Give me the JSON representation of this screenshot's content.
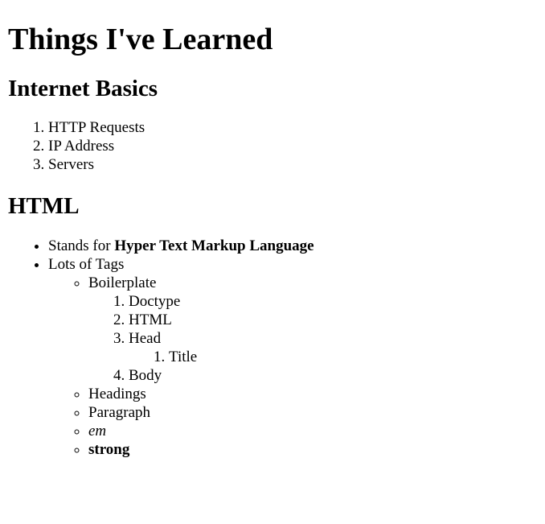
{
  "title": "Things I've Learned",
  "sections": [
    {
      "heading": "Internet Basics",
      "items": [
        "HTTP Requests",
        "IP Address",
        "Servers"
      ]
    },
    {
      "heading": "HTML",
      "items": {
        "stands_for_prefix": "Stands for ",
        "stands_for_bold": "Hyper Text Markup Language",
        "tags_label": "Lots of Tags",
        "tags": {
          "boilerplate": {
            "label": "Boilerplate",
            "items": [
              "Doctype",
              "HTML",
              "Head",
              "Body"
            ],
            "head_children": [
              "Title"
            ]
          },
          "headings": "Headings",
          "paragraph": "Paragraph",
          "em": "em",
          "strong": "strong"
        }
      }
    }
  ]
}
